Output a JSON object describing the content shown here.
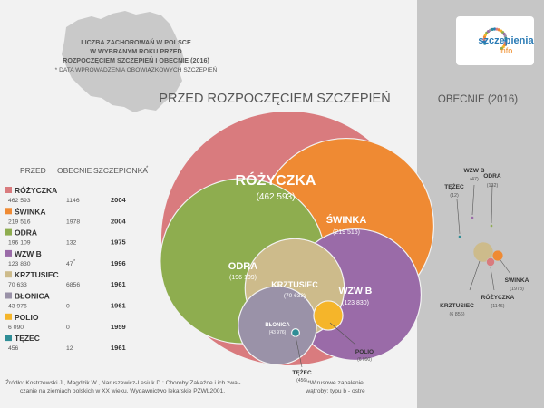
{
  "title_lines": [
    "LICZBA ZACHOROWAŃ W POLSCE",
    "W WYBRANYM ROKU PRZED",
    "ROZPOCZĘCIEM SZCZEPIEŃ  I  OBECNIE (2016)",
    "* DATA WPROWADZENIA OBOWIĄZKOWYCH SZCZEPIEŃ"
  ],
  "section_before": "PRZED ROZPOCZĘCIEM SZCZEPIEŃ",
  "section_now": "OBECNIE (2016)",
  "logo": {
    "line1": "szczepienia",
    "line2": "info"
  },
  "table_headers": {
    "before": "PRZED",
    "now": "OBECNIE",
    "year": "SZCZEPIONKA",
    "year_mark": "*"
  },
  "colors": {
    "background": "#f2f2f2",
    "right_panel": "#c6c6c6",
    "map": "#c9c9c9",
    "rozyczka": "#d97b7e",
    "swinka": "#ef8a33",
    "odra": "#8ead4f",
    "wzwb": "#9a6ba8",
    "krztusiec": "#cdbb8b",
    "blonica": "#9a92a8",
    "polio": "#f5b52a",
    "tezec": "#2f8d96"
  },
  "chart_data": {
    "type": "bubble",
    "series": [
      {
        "key": "rozyczka",
        "name": "RÓŻYCZKA",
        "before": 462593,
        "before_label": "462 593",
        "now": 1146,
        "now_label": "1146",
        "year": "2004",
        "year_mark": ""
      },
      {
        "key": "swinka",
        "name": "ŚWINKA",
        "before": 219516,
        "before_label": "219 516",
        "now": 1978,
        "now_label": "1978",
        "year": "2004",
        "year_mark": ""
      },
      {
        "key": "odra",
        "name": "ODRA",
        "before": 196109,
        "before_label": "196 109",
        "now": 132,
        "now_label": "132",
        "year": "1975",
        "year_mark": ""
      },
      {
        "key": "wzwb",
        "name": "WZW B",
        "before": 123830,
        "before_label": "123 830",
        "now": 47,
        "now_label": "47",
        "year": "1996",
        "year_mark": "*"
      },
      {
        "key": "krztusiec",
        "name": "KRZTUSIEC",
        "before": 70633,
        "before_label": "70 633",
        "now": 6856,
        "now_label": "6856",
        "year": "1961",
        "year_mark": ""
      },
      {
        "key": "blonica",
        "name": "BŁONICA",
        "before": 43976,
        "before_label": "43 976",
        "now": 0,
        "now_label": "0",
        "year": "1961",
        "year_mark": ""
      },
      {
        "key": "polio",
        "name": "POLIO",
        "before": 6090,
        "before_label": "6 090",
        "now": 0,
        "now_label": "0",
        "year": "1959",
        "year_mark": ""
      },
      {
        "key": "tezec",
        "name": "TĘŻEC",
        "before": 456,
        "before_label": "456",
        "now": 12,
        "now_label": "12",
        "year": "1961",
        "year_mark": ""
      }
    ],
    "now_labels": {
      "rozyczka": {
        "name": "RÓŻYCZKA",
        "value": "(1146)"
      },
      "swinka": {
        "name": "ŚWINKA",
        "value": "(1978)"
      },
      "odra": {
        "name": "ODRA",
        "value": "(132)"
      },
      "wzwb": {
        "name": "WZW B",
        "value": "(47)"
      },
      "krztusiec": {
        "name": "KRZTUSIEC",
        "value": "(6 856)"
      },
      "tezec": {
        "name": "TĘŻEC",
        "value": "(12)"
      }
    }
  },
  "source_lines": [
    "Źródło: Kostrzewski J., Magdzik W., Naruszewicz-Lesiuk D.: Choroby Zakaźne i ich zwal-",
    "czanie na ziemiach polskich w XX wieku. Wydawnictwo lekarskie PZWL2001."
  ],
  "footnote_lines": [
    "*Wirusowe zapalenie",
    "wątroby: typu b - ostre"
  ]
}
